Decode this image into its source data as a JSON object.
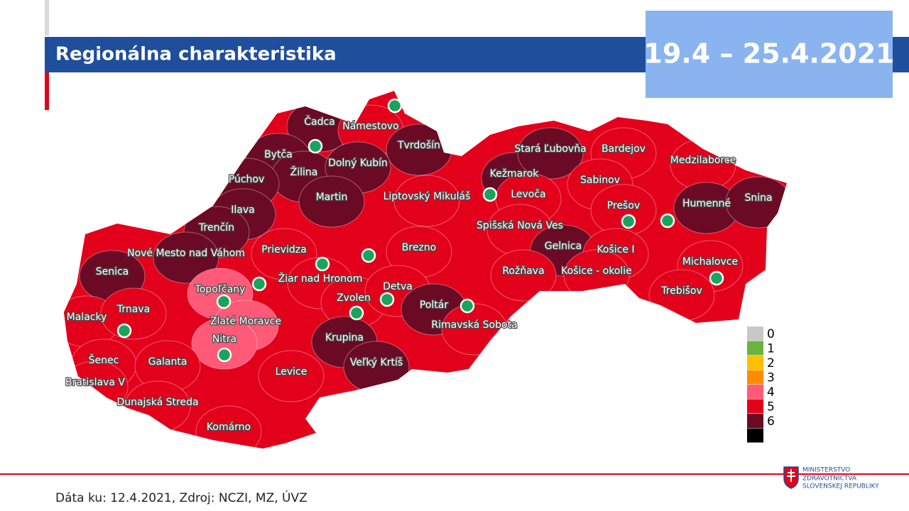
{
  "header": {
    "title": "Regionálna charakteristika",
    "period": "19.4 – 25.4.2021"
  },
  "map": {
    "districts": [
      {
        "label": "Čadca",
        "level": 6
      },
      {
        "label": "Námestovo",
        "level": 5
      },
      {
        "label": "Tvrdošín",
        "level": 6
      },
      {
        "label": "Bytča",
        "level": 6
      },
      {
        "label": "Žilina",
        "level": 6
      },
      {
        "label": "Dolný Kubín",
        "level": 6
      },
      {
        "label": "Púchov",
        "level": 6
      },
      {
        "label": "Martin",
        "level": 6
      },
      {
        "label": "Ilava",
        "level": 6
      },
      {
        "label": "Liptovský Mikuláš",
        "level": 5
      },
      {
        "label": "Kežmarok",
        "level": 6
      },
      {
        "label": "Stará Ľubovňa",
        "level": 6
      },
      {
        "label": "Bardejov",
        "level": 5
      },
      {
        "label": "Medzilaborce",
        "level": 5
      },
      {
        "label": "Sabinov",
        "level": 5
      },
      {
        "label": "Levoča",
        "level": 5
      },
      {
        "label": "Humenné",
        "level": 6
      },
      {
        "label": "Snina",
        "level": 6
      },
      {
        "label": "Trenčín",
        "level": 6
      },
      {
        "label": "Prešov",
        "level": 5
      },
      {
        "label": "Spišská Nová Ves",
        "level": 5
      },
      {
        "label": "Nové Mesto nad Váhom",
        "level": 6
      },
      {
        "label": "Prievidza",
        "level": 5
      },
      {
        "label": "Brezno",
        "level": 5
      },
      {
        "label": "Gelnica",
        "level": 6
      },
      {
        "label": "Košice I",
        "level": 5
      },
      {
        "label": "Senica",
        "level": 6
      },
      {
        "label": "Žiar nad Hronom",
        "level": 5
      },
      {
        "label": "Michalovce",
        "level": 5
      },
      {
        "label": "Rožňava",
        "level": 5
      },
      {
        "label": "Košice - okolie",
        "level": 5
      },
      {
        "label": "Topoľčany",
        "level": 4
      },
      {
        "label": "Zvolen",
        "level": 5
      },
      {
        "label": "Detva",
        "level": 5
      },
      {
        "label": "Trebišov",
        "level": 5
      },
      {
        "label": "Poltár",
        "level": 6
      },
      {
        "label": "Malacky",
        "level": 5
      },
      {
        "label": "Trnava",
        "level": 5
      },
      {
        "label": "Zlaté Moravce",
        "level": 4
      },
      {
        "label": "Rimavská Sobota",
        "level": 5
      },
      {
        "label": "Krupina",
        "level": 6
      },
      {
        "label": "Nitra",
        "level": 4
      },
      {
        "label": "Šenec",
        "level": 5
      },
      {
        "label": "Galanta",
        "level": 5
      },
      {
        "label": "Veľký Krtíš",
        "level": 6
      },
      {
        "label": "Levice",
        "level": 5
      },
      {
        "label": "Bratislava V",
        "level": 5
      },
      {
        "label": "Dunajská Streda",
        "level": 5
      },
      {
        "label": "Komárno",
        "level": 5
      }
    ],
    "legend": {
      "levels": [
        0,
        1,
        2,
        3,
        4,
        5,
        6,
        null
      ],
      "colors": [
        "#c8c8c8",
        "#6ab43e",
        "#ffc000",
        "#ff8c00",
        "#ff5a78",
        "#e3001b",
        "#6b0a24",
        "#000000"
      ]
    }
  },
  "footer": {
    "source": "Dáta ku: 12.4.2021, Zdroj: NCZI, MZ, ÚVZ"
  },
  "logo": {
    "lines": [
      "MINISTERSTVO",
      "ZDRAVOTNÍCTVA",
      "SLOVENSKEJ REPUBLIKY"
    ]
  }
}
